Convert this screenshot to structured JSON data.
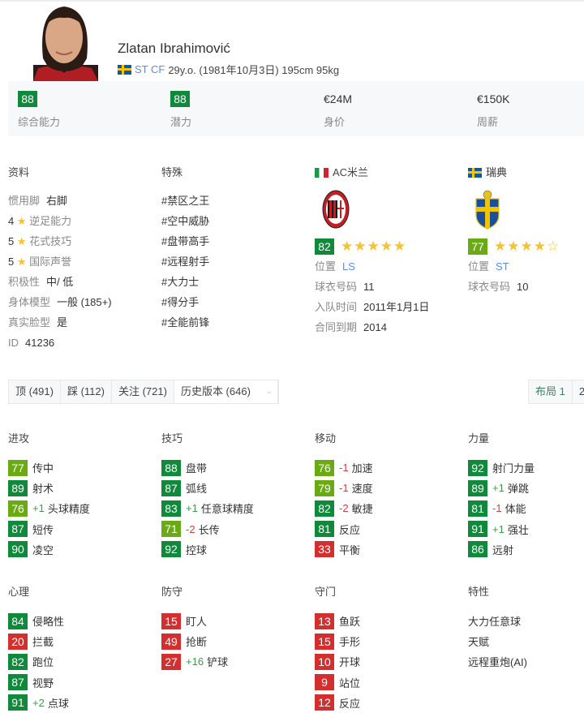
{
  "player": {
    "name": "Zlatan Ibrahimović",
    "positions": "ST CF",
    "details": "29y.o. (1981年10月3日) 195cm 95kg",
    "nationality_flag": "sweden-flag"
  },
  "summary": [
    {
      "value": "88",
      "label": "综合能力",
      "badge": "g"
    },
    {
      "value": "88",
      "label": "潜力",
      "badge": "g"
    },
    {
      "value": "€24M",
      "label": "身价"
    },
    {
      "value": "€150K",
      "label": "周薪"
    }
  ],
  "profile": {
    "title": "资料",
    "rows": [
      {
        "label": "惯用脚",
        "value": "右脚"
      },
      {
        "num": "4",
        "label": "逆足能力"
      },
      {
        "num": "5",
        "label": "花式技巧"
      },
      {
        "num": "5",
        "label": "国际声誉"
      },
      {
        "label": "积极性",
        "value": "中/ 低"
      },
      {
        "label": "身体模型",
        "value": "一般 (185+)"
      },
      {
        "label": "真实脸型",
        "value": "是"
      },
      {
        "label": "ID",
        "value": "41236"
      }
    ]
  },
  "specialities": {
    "title": "特殊",
    "items": [
      "#禁区之王",
      "#空中威胁",
      "#盘带高手",
      "#远程射手",
      "#大力士",
      "#得分手",
      "#全能前锋"
    ]
  },
  "club": {
    "name": "AC米兰",
    "rating": "82",
    "stars": 5,
    "position_label": "位置",
    "position": "LS",
    "jersey_label": "球衣号码",
    "jersey": "11",
    "joined_label": "入队时间",
    "joined": "2011年1月1日",
    "contract_label": "合同到期",
    "contract": "2014"
  },
  "national": {
    "name": "瑞典",
    "rating": "77",
    "stars": 4,
    "position_label": "位置",
    "position": "ST",
    "jersey_label": "球衣号码",
    "jersey": "10"
  },
  "tabs": [
    "顶 (491)",
    "踩 (112)",
    "关注 (721)",
    "历史版本 (646)"
  ],
  "layout_buttons": [
    "布局 1",
    "2"
  ],
  "colors": {
    "high": "#0e8a3a",
    "mid": "#6aaa12",
    "low": "#d32f2f",
    "link": "#5b8def"
  },
  "stat_groups": [
    {
      "title": "进攻",
      "stats": [
        {
          "v": 77,
          "n": "传中"
        },
        {
          "v": 89,
          "n": "射术"
        },
        {
          "v": 76,
          "m": "+1",
          "n": "头球精度"
        },
        {
          "v": 87,
          "n": "短传"
        },
        {
          "v": 90,
          "n": "凌空"
        }
      ]
    },
    {
      "title": "技巧",
      "stats": [
        {
          "v": 88,
          "n": "盘带"
        },
        {
          "v": 87,
          "n": "弧线"
        },
        {
          "v": 83,
          "m": "+1",
          "n": "任意球精度"
        },
        {
          "v": 71,
          "m": "-2",
          "n": "长传"
        },
        {
          "v": 92,
          "n": "控球"
        }
      ]
    },
    {
      "title": "移动",
      "stats": [
        {
          "v": 76,
          "m": "-1",
          "n": "加速"
        },
        {
          "v": 79,
          "m": "-1",
          "n": "速度"
        },
        {
          "v": 82,
          "m": "-2",
          "n": "敏捷"
        },
        {
          "v": 81,
          "n": "反应"
        },
        {
          "v": 33,
          "n": "平衡"
        }
      ]
    },
    {
      "title": "力量",
      "stats": [
        {
          "v": 92,
          "n": "射门力量"
        },
        {
          "v": 89,
          "m": "+1",
          "n": "弹跳"
        },
        {
          "v": 81,
          "m": "-1",
          "n": "体能"
        },
        {
          "v": 91,
          "m": "+1",
          "n": "强壮"
        },
        {
          "v": 86,
          "n": "远射"
        }
      ]
    },
    {
      "title": "心理",
      "stats": [
        {
          "v": 84,
          "n": "侵略性"
        },
        {
          "v": 20,
          "n": "拦截"
        },
        {
          "v": 82,
          "n": "跑位"
        },
        {
          "v": 87,
          "n": "视野"
        },
        {
          "v": 91,
          "m": "+2",
          "n": "点球"
        }
      ]
    },
    {
      "title": "防守",
      "stats": [
        {
          "v": 15,
          "n": "盯人"
        },
        {
          "v": 49,
          "n": "抢断"
        },
        {
          "v": 27,
          "m": "+16",
          "n": "铲球"
        }
      ]
    },
    {
      "title": "守门",
      "stats": [
        {
          "v": 13,
          "n": "鱼跃"
        },
        {
          "v": 15,
          "n": "手形"
        },
        {
          "v": 10,
          "n": "开球"
        },
        {
          "v": 9,
          "n": "站位"
        },
        {
          "v": 12,
          "n": "反应"
        }
      ]
    }
  ],
  "traits": {
    "title": "特性",
    "items": [
      "大力任意球",
      "天赋",
      "远程重炮(AI)"
    ]
  }
}
